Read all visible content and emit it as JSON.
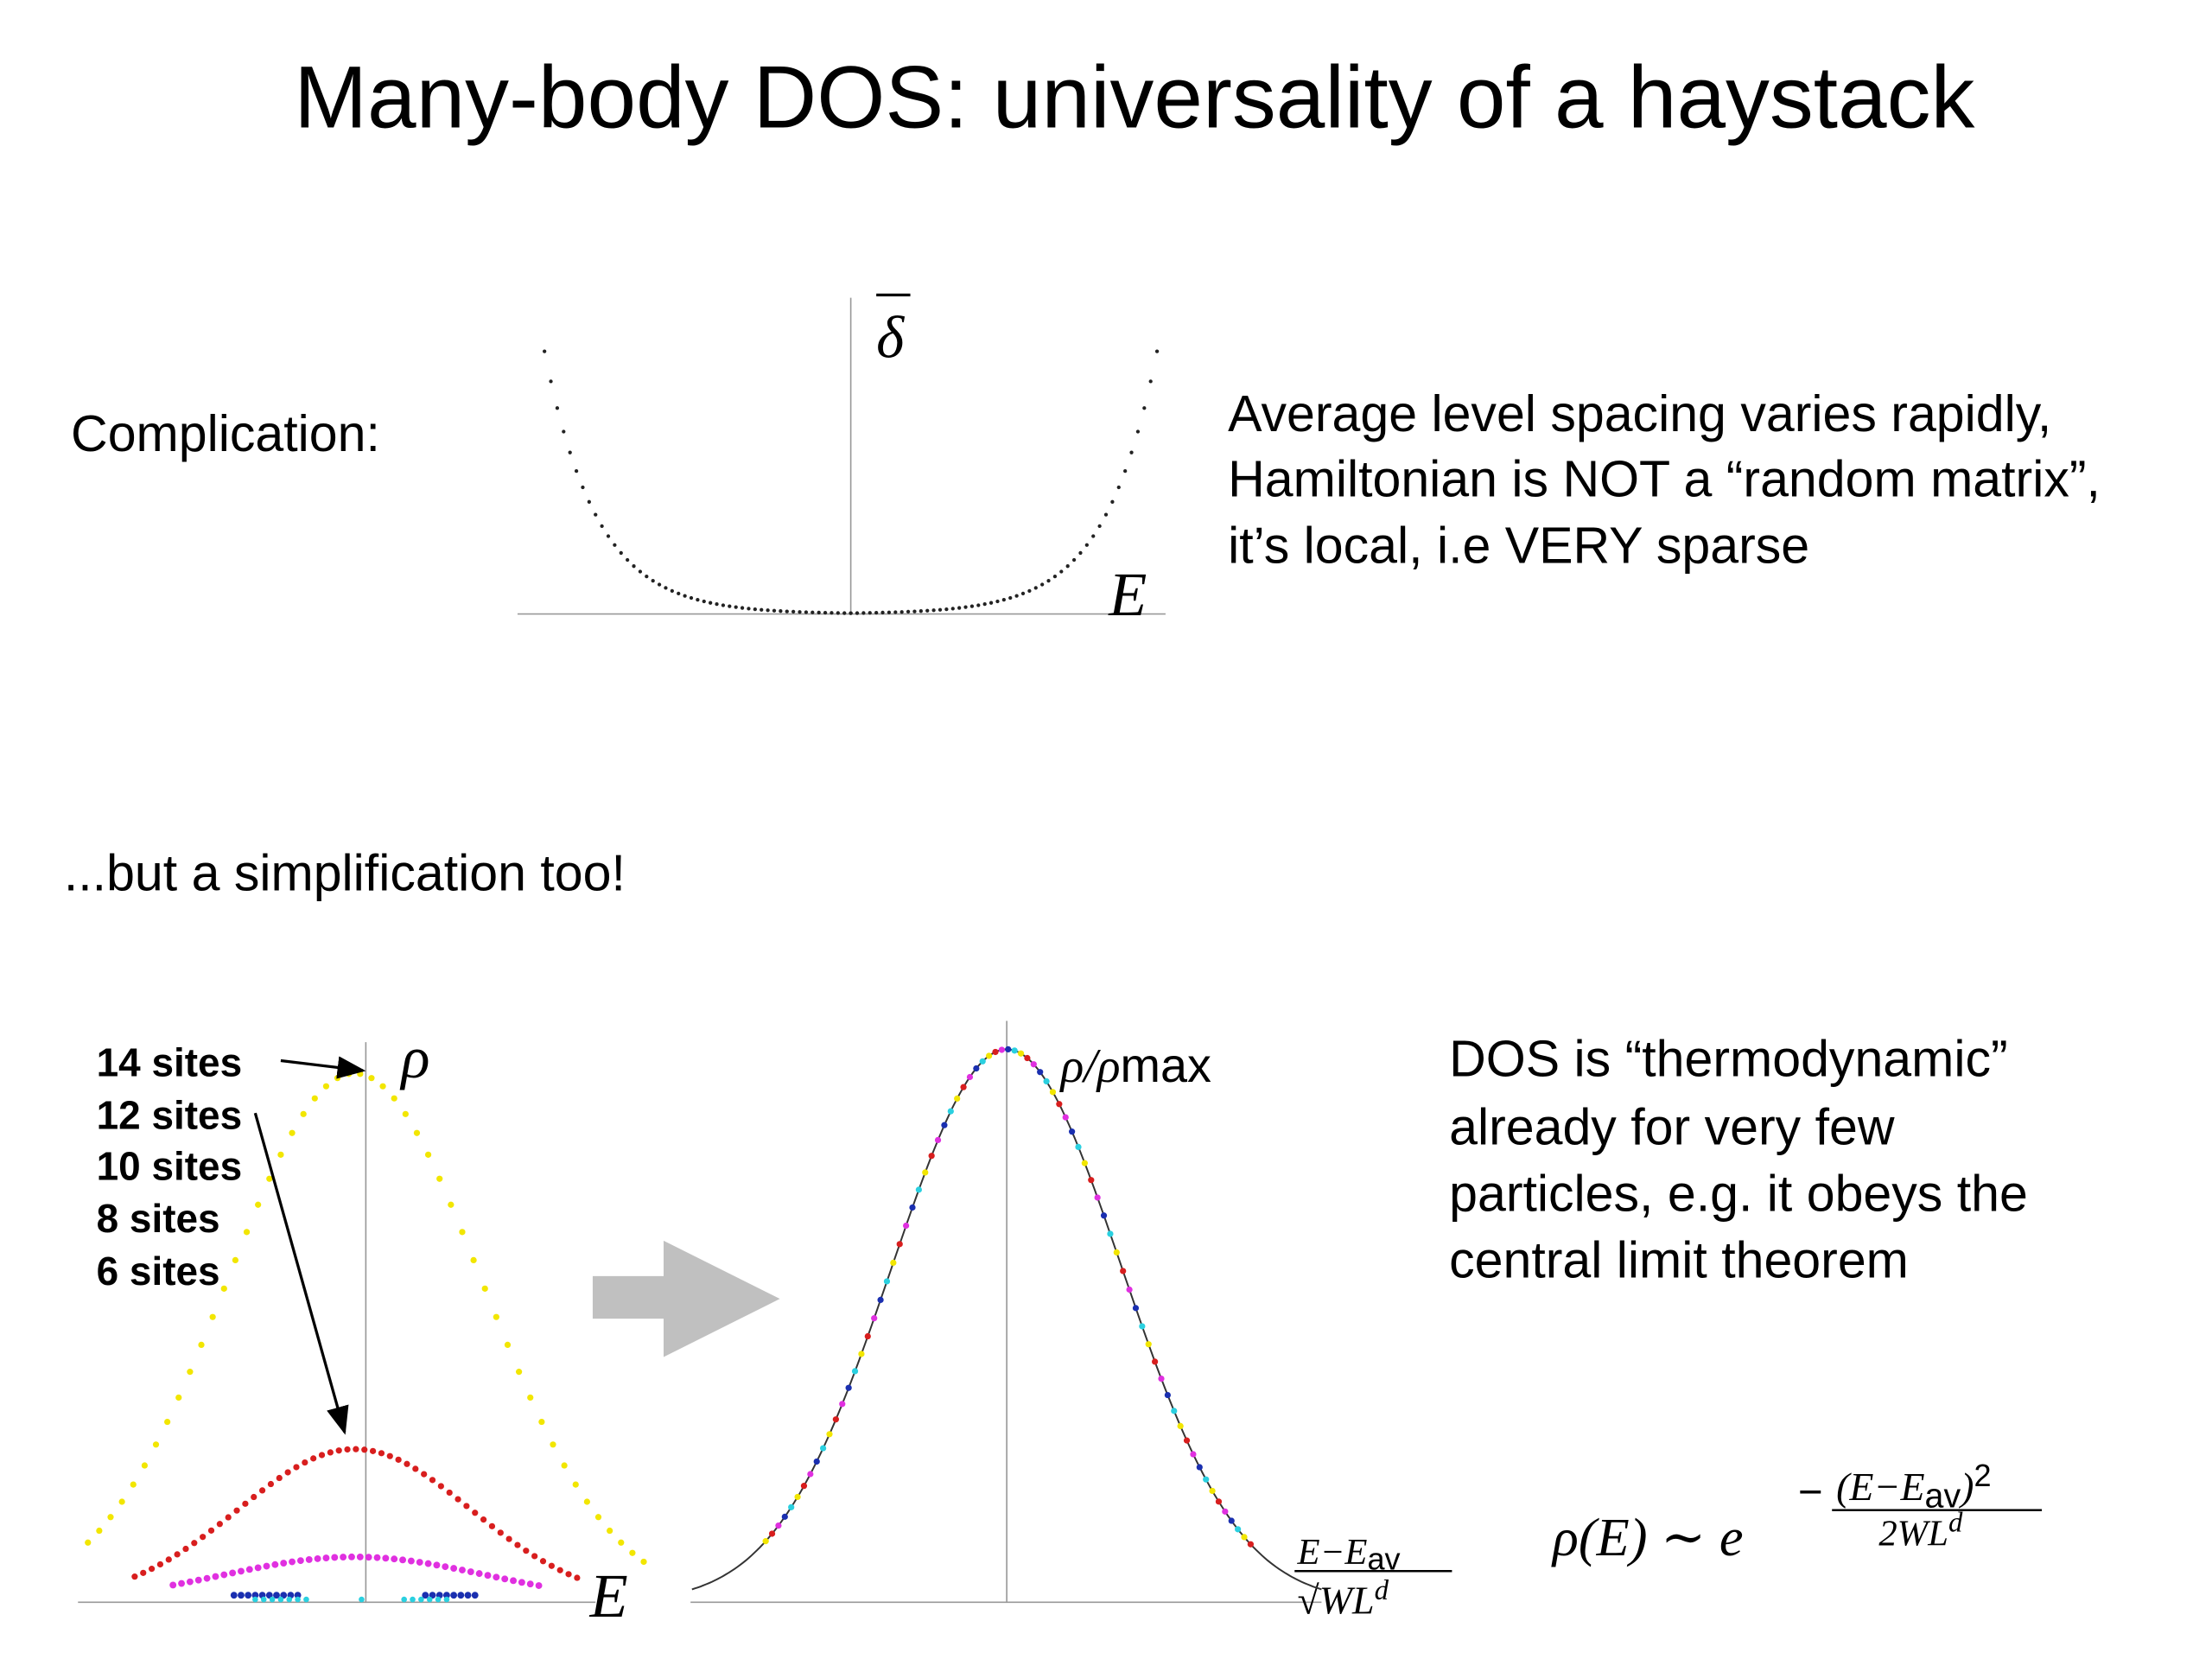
{
  "title": "Many-body DOS: universality of a haystack",
  "complication": {
    "label": "Complication:",
    "y_label": "δ",
    "x_label": "E",
    "text": [
      "Average level spacing varies rapidly,",
      "Hamiltonian is NOT a “random matrix”,",
      "it’s local, i.e VERY sparse"
    ]
  },
  "simplification": {
    "label": "...but a simplification too!",
    "legend": [
      "14 sites",
      "12 sites",
      "10 sites",
      "8 sites",
      "6 sites"
    ],
    "left_y_label": "ρ",
    "left_x_label": "E",
    "right_y_label": {
      "main": "ρ/ρ",
      "sub": "max"
    },
    "right_x_label": {
      "num": "E−E",
      "num_sub": "av",
      "den": "√WL",
      "den_sup": "d"
    },
    "text": [
      "DOS is “thermodynamic”",
      "already for very few",
      "particles, e.g. it obeys the",
      "central limit theorem"
    ],
    "formula": {
      "base": "ρ(E) ∼ e",
      "minus": "−",
      "num": "(E−E",
      "num_sub": "av",
      "num_close": ")",
      "num_sup": "2",
      "den": "2WL",
      "den_sup": "d"
    }
  }
}
